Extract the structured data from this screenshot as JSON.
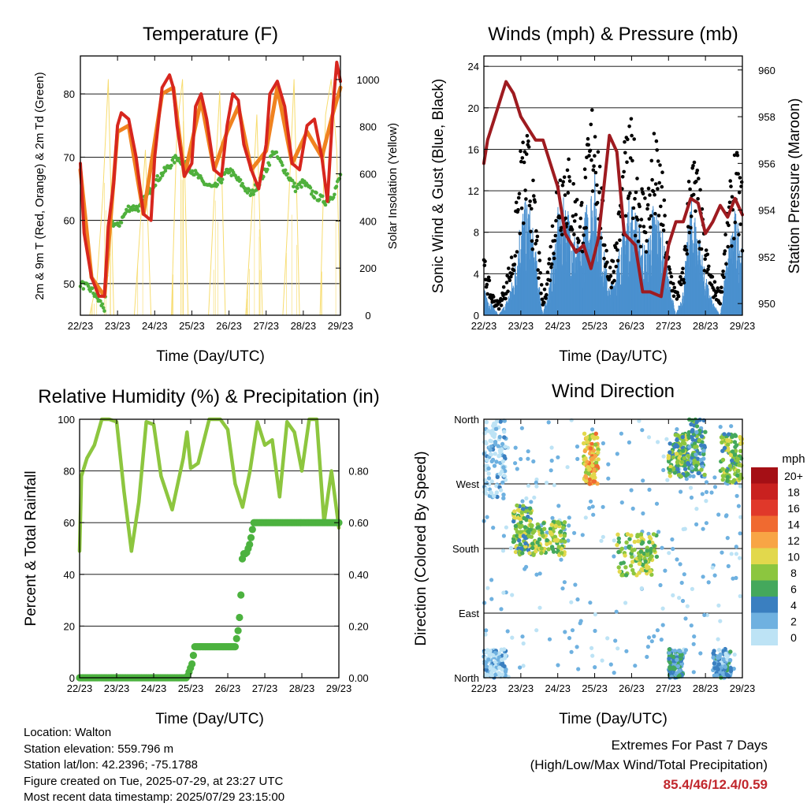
{
  "time_ticks": [
    "22/23",
    "23/23",
    "24/23",
    "25/23",
    "26/23",
    "27/23",
    "28/23",
    "29/23"
  ],
  "xlabel": "Time (Day/UTC)",
  "charts": {
    "temperature": {
      "title": "Temperature (F)",
      "ylabel_left": "2m & 9m T (Red, Orange) & 2m Td (Green)",
      "ylabel_right": "Solar Insolation (Yellow)",
      "left_ticks": [
        "50",
        "60",
        "70",
        "80"
      ],
      "right_ticks": [
        "0",
        "200",
        "400",
        "600",
        "800",
        "1000"
      ]
    },
    "winds": {
      "title": "Winds (mph) & Pressure (mb)",
      "ylabel_left": "Sonic Wind & Gust (Blue, Black)",
      "ylabel_right": "Station Pressure (Maroon)",
      "left_ticks": [
        "0",
        "4",
        "8",
        "12",
        "16",
        "20",
        "24"
      ],
      "right_ticks": [
        "950",
        "952",
        "954",
        "956",
        "958",
        "960"
      ]
    },
    "humidity": {
      "title": "Relative Humidity (%) & Precipitation (in)",
      "ylabel_left": "Percent & Total Rainfall",
      "left_ticks": [
        "0",
        "20",
        "40",
        "60",
        "80",
        "100"
      ],
      "right_ticks": [
        "0.00",
        "0.20",
        "0.40",
        "0.60",
        "0.80"
      ]
    },
    "direction": {
      "title": "Wind Direction",
      "ylabel_left": "Direction (Colored By Speed)",
      "left_ticks": [
        "North",
        "East",
        "South",
        "West",
        "North"
      ],
      "legend_title": "mph",
      "legend_labels": [
        "20+",
        "18",
        "16",
        "14",
        "12",
        "10",
        "8",
        "6",
        "4",
        "2",
        "0"
      ],
      "legend_colors": [
        "#a50f15",
        "#c9211f",
        "#e0382a",
        "#f06a30",
        "#f8a545",
        "#e2d84c",
        "#8cc63f",
        "#44a85c",
        "#3a7fc0",
        "#6fb1e0",
        "#bde3f5"
      ]
    }
  },
  "chart_data": [
    {
      "type": "line",
      "title": "Temperature (F)",
      "xlabel": "Time (Day/UTC)",
      "ylabel": "2m & 9m T (Red, Orange) & 2m Td (Green)",
      "ylabel_right": "Solar Insolation (Yellow)",
      "ylim": [
        45,
        86
      ],
      "ylim_right": [
        0,
        1100
      ],
      "xlim": [
        0,
        7
      ],
      "series": [
        {
          "name": "2m T",
          "color": "#d7261e",
          "x": [
            0,
            0.1,
            0.3,
            0.5,
            0.65,
            0.75,
            0.9,
            1.0,
            1.1,
            1.3,
            1.5,
            1.7,
            1.9,
            2.0,
            2.2,
            2.4,
            2.5,
            2.6,
            2.8,
            3.0,
            3.1,
            3.25,
            3.4,
            3.6,
            3.8,
            3.95,
            4.1,
            4.25,
            4.4,
            4.6,
            4.8,
            5.0,
            5.1,
            5.3,
            5.5,
            5.7,
            5.9,
            6.1,
            6.3,
            6.5,
            6.65,
            6.8,
            6.9,
            7.0
          ],
          "y": [
            69,
            58,
            51,
            48,
            48,
            59,
            66,
            75,
            77,
            76,
            70,
            61,
            60,
            70,
            81,
            83,
            81,
            75,
            67,
            69,
            78,
            80,
            76,
            68,
            67,
            75,
            80,
            79,
            72,
            68,
            65,
            72,
            80,
            82,
            78,
            69,
            68,
            75,
            76,
            70,
            63,
            78,
            85,
            82
          ]
        },
        {
          "name": "9m T",
          "color": "#f0821f",
          "x": [
            0,
            0.3,
            0.65,
            1.0,
            1.3,
            1.7,
            2.2,
            2.5,
            2.8,
            3.25,
            3.6,
            3.95,
            4.25,
            4.6,
            5.0,
            5.3,
            5.7,
            6.1,
            6.5,
            6.8,
            7.0
          ],
          "y": [
            68,
            51,
            48,
            74,
            75,
            61,
            80,
            81,
            67,
            79,
            68,
            74,
            78,
            68,
            71,
            81,
            69,
            74,
            70,
            77,
            81
          ]
        },
        {
          "name": "2m Td",
          "color": "#4fb03c",
          "x": [
            0,
            0.3,
            0.65,
            0.8,
            1.0,
            1.3,
            1.6,
            2.0,
            2.3,
            2.6,
            3.0,
            3.3,
            3.6,
            4.0,
            4.3,
            4.6,
            5.0,
            5.2,
            5.5,
            5.8,
            6.0,
            6.3,
            6.6,
            6.8,
            7.0
          ],
          "y": [
            50,
            49,
            46,
            60,
            59,
            62,
            62,
            66,
            68,
            70,
            68,
            66,
            65,
            68,
            66,
            64,
            68,
            71,
            68,
            65,
            66,
            64,
            63,
            64,
            67
          ]
        },
        {
          "name": "Solar",
          "color": "#f7dc6f",
          "axis": "right",
          "x": [
            0,
            0.25,
            0.45,
            0.6,
            0.75,
            0.9,
            1.25,
            1.45,
            1.6,
            1.75,
            1.9,
            2.25,
            2.45,
            2.6,
            2.75,
            2.9,
            3.25,
            3.45,
            3.6,
            3.75,
            3.9,
            4.25,
            4.45,
            4.6,
            4.75,
            4.9,
            5.25,
            5.45,
            5.6,
            5.75,
            5.9,
            6.25,
            6.45,
            6.6,
            6.75,
            6.9,
            7.0
          ],
          "y": [
            0,
            0,
            150,
            500,
            1000,
            0,
            0,
            0,
            350,
            700,
            0,
            0,
            0,
            800,
            1000,
            0,
            0,
            0,
            500,
            950,
            0,
            0,
            0,
            400,
            850,
            0,
            0,
            0,
            450,
            1000,
            0,
            0,
            0,
            850,
            1000,
            700,
            0
          ]
        }
      ]
    },
    {
      "type": "line",
      "title": "Winds (mph) & Pressure (mb)",
      "xlabel": "Time (Day/UTC)",
      "ylabel": "Sonic Wind & Gust (Blue, Black)",
      "ylabel_right": "Station Pressure (Maroon)",
      "ylim": [
        0,
        25
      ],
      "ylim_right": [
        949.5,
        960.6
      ],
      "xlim": [
        0,
        7
      ],
      "series": [
        {
          "name": "Sonic Wind",
          "color": "#4a90cf",
          "x": [
            0,
            0.2,
            0.4,
            0.6,
            0.8,
            1.0,
            1.2,
            1.4,
            1.6,
            1.8,
            2.0,
            2.2,
            2.4,
            2.6,
            2.8,
            3.0,
            3.2,
            3.4,
            3.6,
            3.8,
            4.0,
            4.2,
            4.4,
            4.6,
            4.8,
            5.0,
            5.2,
            5.4,
            5.6,
            5.8,
            6.0,
            6.2,
            6.4,
            6.6,
            6.8,
            7.0
          ],
          "y": [
            2,
            1,
            0,
            1,
            3,
            8,
            9,
            5,
            0,
            3,
            8,
            9,
            7,
            5,
            9,
            11,
            6,
            2,
            4,
            8,
            9,
            7,
            5,
            9,
            7,
            3,
            0,
            2,
            9,
            7,
            3,
            1,
            0,
            5,
            8,
            6
          ]
        },
        {
          "name": "Gust",
          "color": "#000000",
          "x": [
            0,
            0.2,
            0.4,
            0.6,
            0.8,
            1.0,
            1.2,
            1.4,
            1.6,
            1.8,
            2.0,
            2.2,
            2.4,
            2.6,
            2.8,
            3.0,
            3.2,
            3.4,
            3.6,
            3.8,
            4.0,
            4.2,
            4.4,
            4.6,
            4.8,
            5.0,
            5.2,
            5.4,
            5.6,
            5.8,
            6.0,
            6.2,
            6.4,
            6.6,
            6.8,
            7.0
          ],
          "y": [
            5,
            2,
            1,
            3,
            6,
            14,
            15,
            9,
            1,
            6,
            13,
            14,
            12,
            9,
            14,
            20,
            10,
            4,
            7,
            14,
            16,
            12,
            10,
            15,
            13,
            5,
            2,
            4,
            14,
            12,
            6,
            3,
            2,
            9,
            14,
            11
          ]
        },
        {
          "name": "Pressure",
          "color": "#9e1b20",
          "axis": "right",
          "x": [
            0,
            0.1,
            0.3,
            0.5,
            0.6,
            0.8,
            1.0,
            1.2,
            1.4,
            1.6,
            1.8,
            2.0,
            2.2,
            2.5,
            2.7,
            2.9,
            3.1,
            3.4,
            3.6,
            3.8,
            4.1,
            4.3,
            4.5,
            4.8,
            5.0,
            5.2,
            5.4,
            5.6,
            5.8,
            6.0,
            6.2,
            6.4,
            6.6,
            6.8,
            7.0
          ],
          "y": [
            956,
            957,
            958,
            959,
            959.5,
            959,
            958,
            957.5,
            957,
            957,
            956,
            955,
            953,
            952.2,
            952.5,
            951.5,
            952.8,
            957.2,
            956.5,
            953,
            952.5,
            950.5,
            950.5,
            950.3,
            952.5,
            953.5,
            953.5,
            954.5,
            954.3,
            953,
            953.5,
            954.2,
            953.7,
            954.5,
            953.8
          ]
        }
      ]
    },
    {
      "type": "line",
      "title": "Relative Humidity (%) & Precipitation (in)",
      "xlabel": "Time (Day/UTC)",
      "ylabel": "Percent & Total Rainfall",
      "ylim": [
        0,
        100
      ],
      "ylim_right": [
        0,
        1.0
      ],
      "xlim": [
        0,
        7
      ],
      "series": [
        {
          "name": "Relative Humidity",
          "color": "#8dc63f",
          "x": [
            0,
            0.05,
            0.2,
            0.4,
            0.6,
            0.8,
            1.0,
            1.2,
            1.4,
            1.6,
            1.8,
            2.0,
            2.2,
            2.5,
            2.8,
            2.9,
            3.0,
            3.2,
            3.5,
            3.8,
            4.0,
            4.2,
            4.4,
            4.6,
            4.8,
            5.0,
            5.2,
            5.4,
            5.6,
            5.8,
            6.0,
            6.2,
            6.4,
            6.6,
            6.8,
            7.0
          ],
          "y": [
            49,
            78,
            85,
            90,
            100,
            100,
            99,
            72,
            49,
            68,
            99,
            98,
            78,
            65,
            85,
            95,
            81,
            83,
            100,
            100,
            96,
            75,
            66,
            80,
            99,
            90,
            92,
            70,
            99,
            95,
            80,
            100,
            100,
            60,
            80,
            58
          ]
        },
        {
          "name": "Total Rainfall",
          "color": "#4cb23f",
          "axis": "right",
          "x": [
            0,
            2.9,
            2.95,
            3.0,
            3.05,
            3.1,
            4.0,
            4.2,
            4.3,
            4.35,
            4.4,
            4.5,
            4.6,
            4.7,
            7.0
          ],
          "y": [
            0,
            0,
            0.02,
            0.04,
            0.06,
            0.12,
            0.12,
            0.12,
            0.2,
            0.3,
            0.48,
            0.48,
            0.52,
            0.6,
            0.6
          ]
        }
      ]
    },
    {
      "type": "scatter",
      "title": "Wind Direction",
      "xlabel": "Time (Day/UTC)",
      "ylabel": "Direction (Colored By Speed)",
      "xlim": [
        0,
        7
      ],
      "ylim": [
        0,
        360
      ],
      "clusters": [
        {
          "x": [
            0.0,
            0.6
          ],
          "y": [
            0,
            40
          ],
          "speed": 1
        },
        {
          "x": [
            0.0,
            0.6
          ],
          "y": [
            250,
            360
          ],
          "speed": 1
        },
        {
          "x": [
            0.8,
            1.3
          ],
          "y": [
            170,
            240
          ],
          "speed": 7
        },
        {
          "x": [
            1.3,
            2.2
          ],
          "y": [
            170,
            220
          ],
          "speed": 8
        },
        {
          "x": [
            2.7,
            3.1
          ],
          "y": [
            270,
            340
          ],
          "speed": 11
        },
        {
          "x": [
            3.6,
            4.7
          ],
          "y": [
            140,
            200
          ],
          "speed": 8
        },
        {
          "x": [
            5.0,
            5.5
          ],
          "y": [
            280,
            340
          ],
          "speed": 7
        },
        {
          "x": [
            5.5,
            6.0
          ],
          "y": [
            280,
            360
          ],
          "speed": 5
        },
        {
          "x": [
            6.4,
            7.0
          ],
          "y": [
            270,
            340
          ],
          "speed": 7
        },
        {
          "x": [
            5.0,
            5.4
          ],
          "y": [
            0,
            40
          ],
          "speed": 4
        },
        {
          "x": [
            6.2,
            6.7
          ],
          "y": [
            0,
            40
          ],
          "speed": 3
        }
      ]
    }
  ],
  "info": {
    "location": "Location: Walton",
    "elevation": "Station elevation: 559.796 m",
    "latlon": "Station lat/lon: 42.2396; -75.1788",
    "created": "Figure created on Tue, 2025-07-29, at 23:27 UTC",
    "recent": "Most recent data timestamp: 2025/07/29 23:15:00"
  },
  "extremes": {
    "title": "Extremes For Past 7 Days",
    "subtitle": "(High/Low/Max Wind/Total Precipitation)",
    "values": "85.4/46/12.4/0.59"
  }
}
